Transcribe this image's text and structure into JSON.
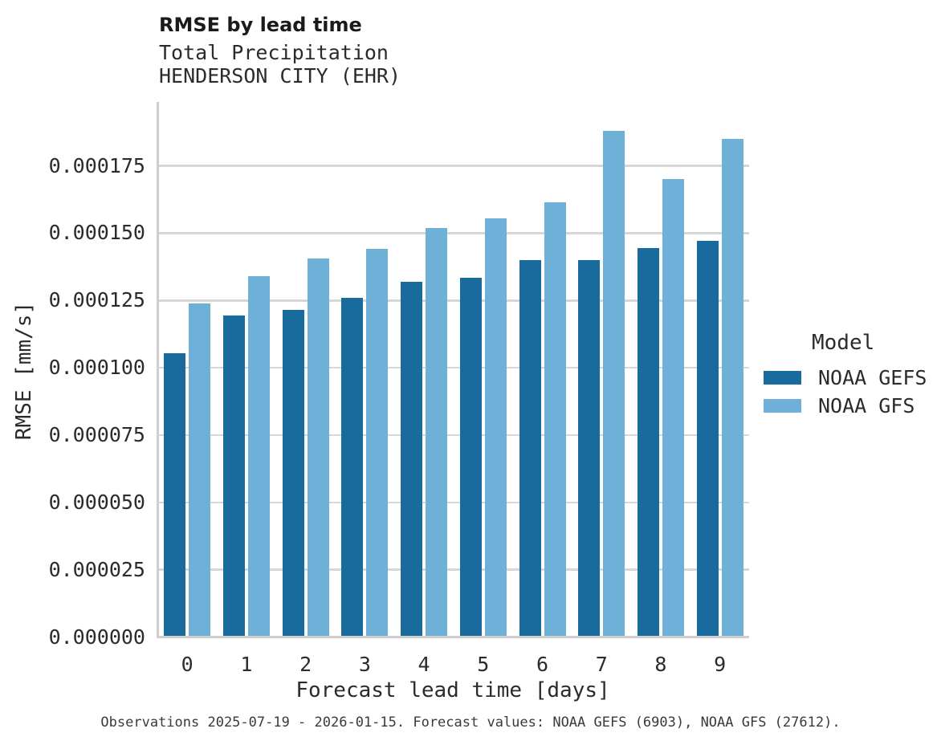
{
  "header": {
    "title": "RMSE by lead time",
    "subtitle_line1": "Total Precipitation",
    "subtitle_line2": "HENDERSON CITY (EHR)"
  },
  "legend": {
    "title": "Model",
    "entries": [
      {
        "label": "NOAA GEFS",
        "color": "#1a6b9d"
      },
      {
        "label": "NOAA GFS",
        "color": "#6fb0d8"
      }
    ]
  },
  "footer": "Observations 2025-07-19 - 2026-01-15. Forecast values: NOAA GEFS (6903), NOAA GFS (27612).",
  "chart_data": {
    "type": "bar",
    "title": "RMSE by lead time",
    "subtitle": [
      "Total Precipitation",
      "HENDERSON CITY (EHR)"
    ],
    "xlabel": "Forecast lead time [days]",
    "ylabel": "RMSE [mm/s]",
    "categories": [
      "0",
      "1",
      "2",
      "3",
      "4",
      "5",
      "6",
      "7",
      "8",
      "9"
    ],
    "series": [
      {
        "name": "NOAA GEFS",
        "color": "#1a6b9d",
        "values": [
          0.0001055,
          0.0001195,
          0.0001215,
          0.000126,
          0.000132,
          0.0001335,
          0.00014,
          0.00014,
          0.0001445,
          0.000147
        ]
      },
      {
        "name": "NOAA GFS",
        "color": "#6fb0d8",
        "values": [
          0.000124,
          0.000134,
          0.0001405,
          0.000144,
          0.000152,
          0.0001555,
          0.0001615,
          0.000188,
          0.00017,
          0.000185
        ]
      }
    ],
    "ylim": [
      0,
      0.000199
    ],
    "y_ticks": [
      {
        "value": 0.0,
        "label": "0.000000"
      },
      {
        "value": 2.5e-05,
        "label": "0.000025"
      },
      {
        "value": 5e-05,
        "label": "0.000050"
      },
      {
        "value": 7.5e-05,
        "label": "0.000075"
      },
      {
        "value": 0.0001,
        "label": "0.000100"
      },
      {
        "value": 0.000125,
        "label": "0.000125"
      },
      {
        "value": 0.00015,
        "label": "0.000150"
      },
      {
        "value": 0.000175,
        "label": "0.000175"
      }
    ],
    "grid": "horizontal",
    "legend_position": "center-right",
    "legend_title": "Model"
  }
}
